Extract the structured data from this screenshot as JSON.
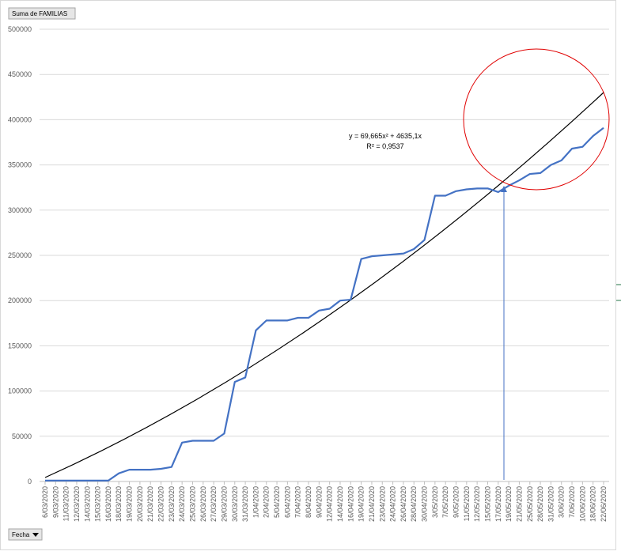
{
  "chart_data": {
    "type": "line",
    "field_button": "Suma de FAMILIAS",
    "axis_button": "Fecha",
    "trendline_equation": "y = 69,665x² + 4635,1x",
    "trendline_r2": "R² = 0,9537",
    "categories": [
      "6/03/2020",
      "9/03/2020",
      "11/03/2020",
      "12/03/2020",
      "14/03/2020",
      "15/03/2020",
      "16/03/2020",
      "18/03/2020",
      "19/03/2020",
      "20/03/2020",
      "21/03/2020",
      "22/03/2020",
      "23/03/2020",
      "24/03/2020",
      "25/03/2020",
      "26/03/2020",
      "27/03/2020",
      "29/03/2020",
      "30/03/2020",
      "31/03/2020",
      "1/04/2020",
      "2/04/2020",
      "5/04/2020",
      "6/04/2020",
      "7/04/2020",
      "8/04/2020",
      "9/04/2020",
      "12/04/2020",
      "14/04/2020",
      "16/04/2020",
      "19/04/2020",
      "21/04/2020",
      "23/04/2020",
      "24/04/2020",
      "26/04/2020",
      "28/04/2020",
      "30/04/2020",
      "3/05/2020",
      "7/05/2020",
      "9/05/2020",
      "11/05/2020",
      "12/05/2020",
      "15/05/2020",
      "17/05/2020",
      "19/05/2020",
      "21/05/2020",
      "25/05/2020",
      "28/05/2020",
      "31/05/2020",
      "3/06/2020",
      "7/06/2020",
      "10/06/2020",
      "18/06/2020",
      "22/06/2020"
    ],
    "series": [
      {
        "color": "#4472c4",
        "values": [
          1000,
          1000,
          1000,
          1000,
          1000,
          1000,
          1000,
          9000,
          13000,
          13000,
          13000,
          14000,
          16000,
          43000,
          45000,
          45000,
          45000,
          53000,
          110000,
          115000,
          167000,
          178000,
          178000,
          178000,
          181000,
          181000,
          189000,
          191000,
          200000,
          201000,
          246000,
          249000,
          250000,
          251000,
          252000,
          257000,
          267000,
          316000,
          316000,
          321000,
          323000,
          324000,
          324000,
          320000,
          327000,
          333000,
          340000,
          341000,
          350000,
          355000,
          368000,
          370000,
          382000,
          391000
        ]
      }
    ],
    "ylim": [
      0,
      500000
    ],
    "yticks": [
      0,
      50000,
      100000,
      150000,
      200000,
      250000,
      300000,
      350000,
      400000,
      450000,
      500000
    ],
    "grid": true
  }
}
